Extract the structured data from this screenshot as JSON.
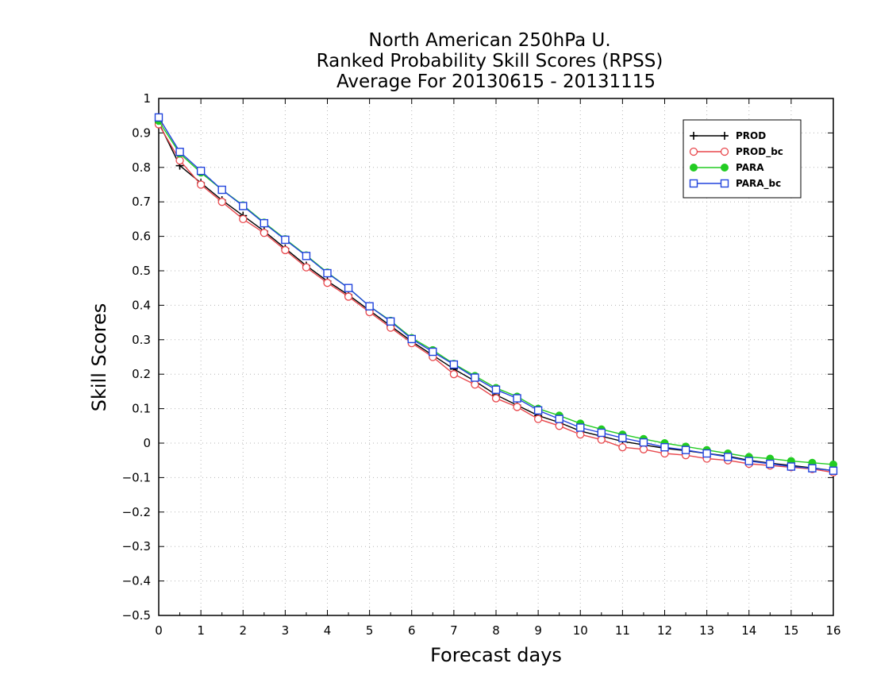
{
  "chart_data": {
    "type": "line",
    "title": [
      "North American 250hPa U.",
      "Ranked Probability Skill Scores (RPSS)",
      "Average For 20130615 - 20131115"
    ],
    "xlabel": "Forecast days",
    "ylabel": "Skill Scores",
    "xlim": [
      0,
      16
    ],
    "ylim": [
      -0.5,
      1
    ],
    "x_ticks": [
      0,
      1,
      2,
      3,
      4,
      5,
      6,
      7,
      8,
      9,
      10,
      11,
      12,
      13,
      14,
      15,
      16
    ],
    "y_ticks": [
      -0.5,
      -0.4,
      -0.3,
      -0.2,
      -0.1,
      0,
      0.1,
      0.2,
      0.3,
      0.4,
      0.5,
      0.6,
      0.7,
      0.8,
      0.9,
      1
    ],
    "y_tick_labels": [
      "−0.5",
      "−0.4",
      "−0.3",
      "−0.2",
      "−0.1",
      "0",
      "0.1",
      "0.2",
      "0.3",
      "0.4",
      "0.5",
      "0.6",
      "0.7",
      "0.8",
      "0.9",
      "1"
    ],
    "grid": true,
    "legend_position": "top-right",
    "x": [
      0,
      0.5,
      1,
      1.5,
      2,
      2.5,
      3,
      3.5,
      4,
      4.5,
      5,
      5.5,
      6,
      6.5,
      7,
      7.5,
      8,
      8.5,
      9,
      9.5,
      10,
      10.5,
      11,
      11.5,
      12,
      12.5,
      13,
      13.5,
      14,
      14.5,
      15,
      15.5,
      16
    ],
    "series": [
      {
        "name": "PROD",
        "marker": "plus",
        "color": "#000000",
        "values": [
          0.93,
          0.805,
          0.755,
          0.705,
          0.66,
          0.615,
          0.565,
          0.515,
          0.47,
          0.43,
          0.385,
          0.34,
          0.295,
          0.255,
          0.215,
          0.18,
          0.14,
          0.11,
          0.08,
          0.06,
          0.035,
          0.02,
          0.005,
          -0.005,
          -0.015,
          -0.022,
          -0.03,
          -0.038,
          -0.05,
          -0.058,
          -0.065,
          -0.072,
          -0.08
        ]
      },
      {
        "name": "PROD_bc",
        "marker": "circle",
        "color": "#e8474c",
        "values": [
          0.925,
          0.82,
          0.75,
          0.7,
          0.65,
          0.61,
          0.56,
          0.51,
          0.465,
          0.425,
          0.38,
          0.335,
          0.29,
          0.25,
          0.2,
          0.17,
          0.13,
          0.105,
          0.07,
          0.05,
          0.025,
          0.01,
          -0.012,
          -0.018,
          -0.03,
          -0.035,
          -0.045,
          -0.05,
          -0.06,
          -0.065,
          -0.07,
          -0.075,
          -0.085
        ]
      },
      {
        "name": "PARA",
        "marker": "filled-circle",
        "color": "#22cc22",
        "values": [
          0.935,
          0.84,
          0.785,
          0.735,
          0.69,
          0.64,
          0.592,
          0.545,
          0.495,
          0.45,
          0.397,
          0.355,
          0.305,
          0.27,
          0.23,
          0.195,
          0.16,
          0.135,
          0.1,
          0.08,
          0.057,
          0.04,
          0.025,
          0.012,
          0.0,
          -0.01,
          -0.02,
          -0.03,
          -0.04,
          -0.045,
          -0.052,
          -0.057,
          -0.062
        ]
      },
      {
        "name": "PARA_bc",
        "marker": "square",
        "color": "#2244dd",
        "values": [
          0.945,
          0.845,
          0.79,
          0.735,
          0.688,
          0.638,
          0.59,
          0.543,
          0.493,
          0.45,
          0.397,
          0.353,
          0.302,
          0.265,
          0.228,
          0.19,
          0.155,
          0.13,
          0.095,
          0.07,
          0.045,
          0.03,
          0.015,
          0.002,
          -0.012,
          -0.02,
          -0.03,
          -0.04,
          -0.052,
          -0.06,
          -0.068,
          -0.073,
          -0.08
        ]
      }
    ]
  }
}
